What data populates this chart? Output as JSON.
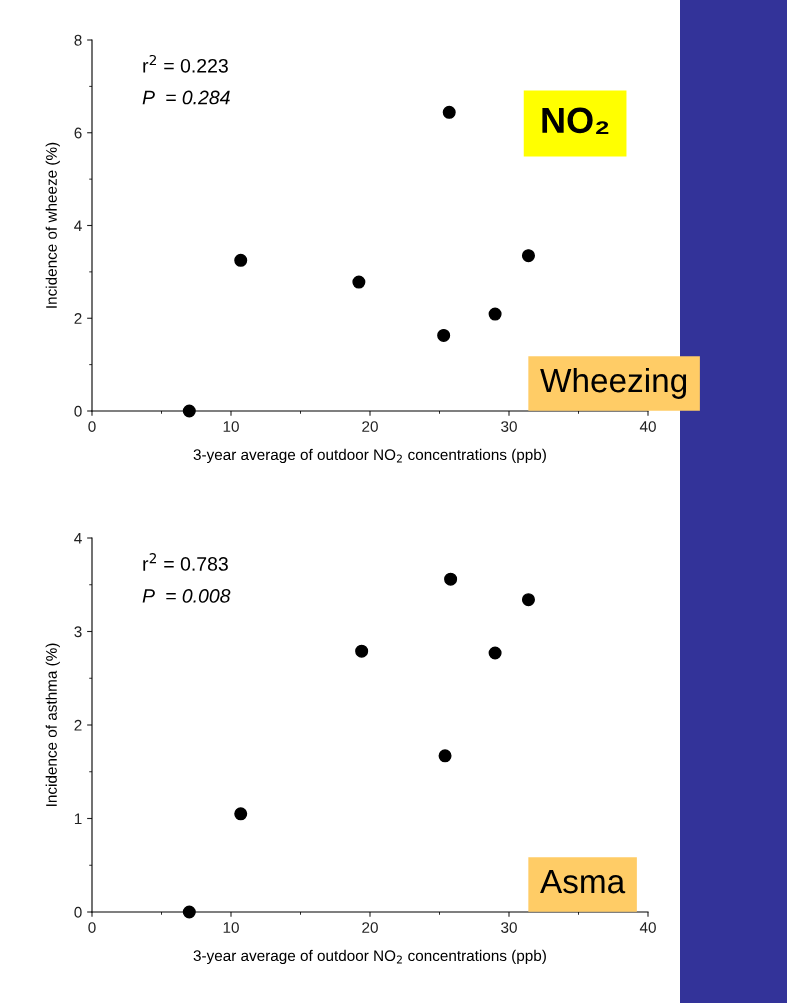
{
  "chart_data": [
    {
      "type": "scatter",
      "xlabel": "3-year average of outdoor NO$_{2}$ concentrations (ppb)",
      "ylabel": "Incidence of wheeze (%)",
      "x": [
        7.0,
        10.7,
        19.2,
        25.3,
        25.7,
        29.0,
        31.4
      ],
      "values": [
        0,
        3.25,
        2.78,
        1.63,
        6.44,
        2.09,
        3.35
      ],
      "color": "#000000",
      "marker": "circle",
      "xlim": [
        0,
        40
      ],
      "xticks": [
        0,
        10,
        20,
        30,
        40
      ],
      "ylim": [
        0,
        8
      ],
      "yticks": [
        0,
        2,
        4,
        6,
        8
      ],
      "grid": false,
      "annotations": [
        "r$^{2}$ = 0.223",
        "P  = 0.284",
        "NO₂",
        "Wheezing"
      ]
    },
    {
      "type": "scatter",
      "xlabel": "3-year average of outdoor NO$_{2}$ concentrations (ppb)",
      "ylabel": "Incidence of asthma (%)",
      "x": [
        7.0,
        10.7,
        19.4,
        25.4,
        25.8,
        29.0,
        31.4
      ],
      "values": [
        0,
        1.05,
        2.79,
        1.67,
        3.56,
        2.77,
        3.34
      ],
      "color": "#000000",
      "marker": "circle",
      "xlim": [
        0,
        40
      ],
      "xticks": [
        0,
        10,
        20,
        30,
        40
      ],
      "ylim": [
        0,
        4
      ],
      "yticks": [
        0,
        1,
        2,
        3,
        4
      ],
      "grid": false,
      "annotations": [
        "r$^{2}$ = 0.783",
        "P  = 0.008",
        "Asma"
      ]
    }
  ]
}
